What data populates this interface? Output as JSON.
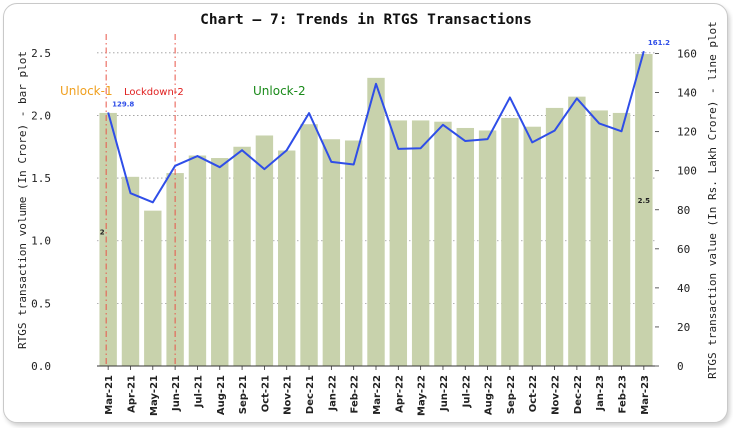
{
  "chart_data": {
    "type": "bar+line",
    "title": "Chart – 7: Trends in RTGS Transactions",
    "categories": [
      "Mar-21",
      "Apr-21",
      "May-21",
      "Jun-21",
      "Jul-21",
      "Aug-21",
      "Sep-21",
      "Oct-21",
      "Nov-21",
      "Dec-21",
      "Jan-22",
      "Feb-22",
      "Mar-22",
      "Apr-22",
      "May-22",
      "Jun-22",
      "Jul-22",
      "Aug-22",
      "Sep-22",
      "Oct-22",
      "Nov-22",
      "Dec-22",
      "Jan-23",
      "Feb-23",
      "Mar-23"
    ],
    "series": [
      {
        "name": "RTGS transaction volume (In Crore) - bar plot",
        "type": "bar",
        "axis": "left",
        "color": "#c8d2ac",
        "values": [
          2.02,
          1.51,
          1.24,
          1.54,
          1.68,
          1.66,
          1.75,
          1.84,
          1.72,
          1.93,
          1.81,
          1.8,
          2.3,
          1.96,
          1.96,
          1.95,
          1.9,
          1.88,
          1.98,
          1.91,
          2.06,
          2.15,
          2.04,
          2.02,
          2.49
        ]
      },
      {
        "name": "RTGS transaction value (In Rs. Lakh Crore) - line plot",
        "type": "line",
        "axis": "right",
        "color": "#2f4ee8",
        "values": [
          129.8,
          88.5,
          83.8,
          102.5,
          107.5,
          101.8,
          110.5,
          100.8,
          110.5,
          129.5,
          104.5,
          103.2,
          144.5,
          111.2,
          111.5,
          123.5,
          115.2,
          116.2,
          137.5,
          114.5,
          120.5,
          137.0,
          124.2,
          120.2,
          161.2
        ]
      }
    ],
    "ylabel": "RTGS transaction volume (In Crore) - bar plot",
    "ylabel_right": "RTGS transaction value (In Rs. Lakh Crore) - line plot",
    "ylim": [
      0,
      2.65
    ],
    "ylim_right": [
      0,
      170
    ],
    "yticks": [
      "0.0",
      "0.5",
      "1.0",
      "1.5",
      "2.0",
      "2.5"
    ],
    "yticks_right": [
      "0",
      "20",
      "40",
      "60",
      "80",
      "100",
      "120",
      "140",
      "160"
    ],
    "grid": true,
    "annotations": {
      "phases": [
        {
          "label": "Unlock-1",
          "color": "#f0a020"
        },
        {
          "label": "Lockdown-2",
          "color": "#e02020"
        },
        {
          "label": "Unlock-2",
          "color": "#1a8a1a"
        }
      ],
      "bar_labels": [
        {
          "index": 0,
          "text": "2"
        },
        {
          "index": 24,
          "text": "2.5"
        }
      ],
      "line_labels": [
        {
          "index": 0,
          "text": "129.8"
        },
        {
          "index": 24,
          "text": "161.2"
        }
      ]
    }
  }
}
